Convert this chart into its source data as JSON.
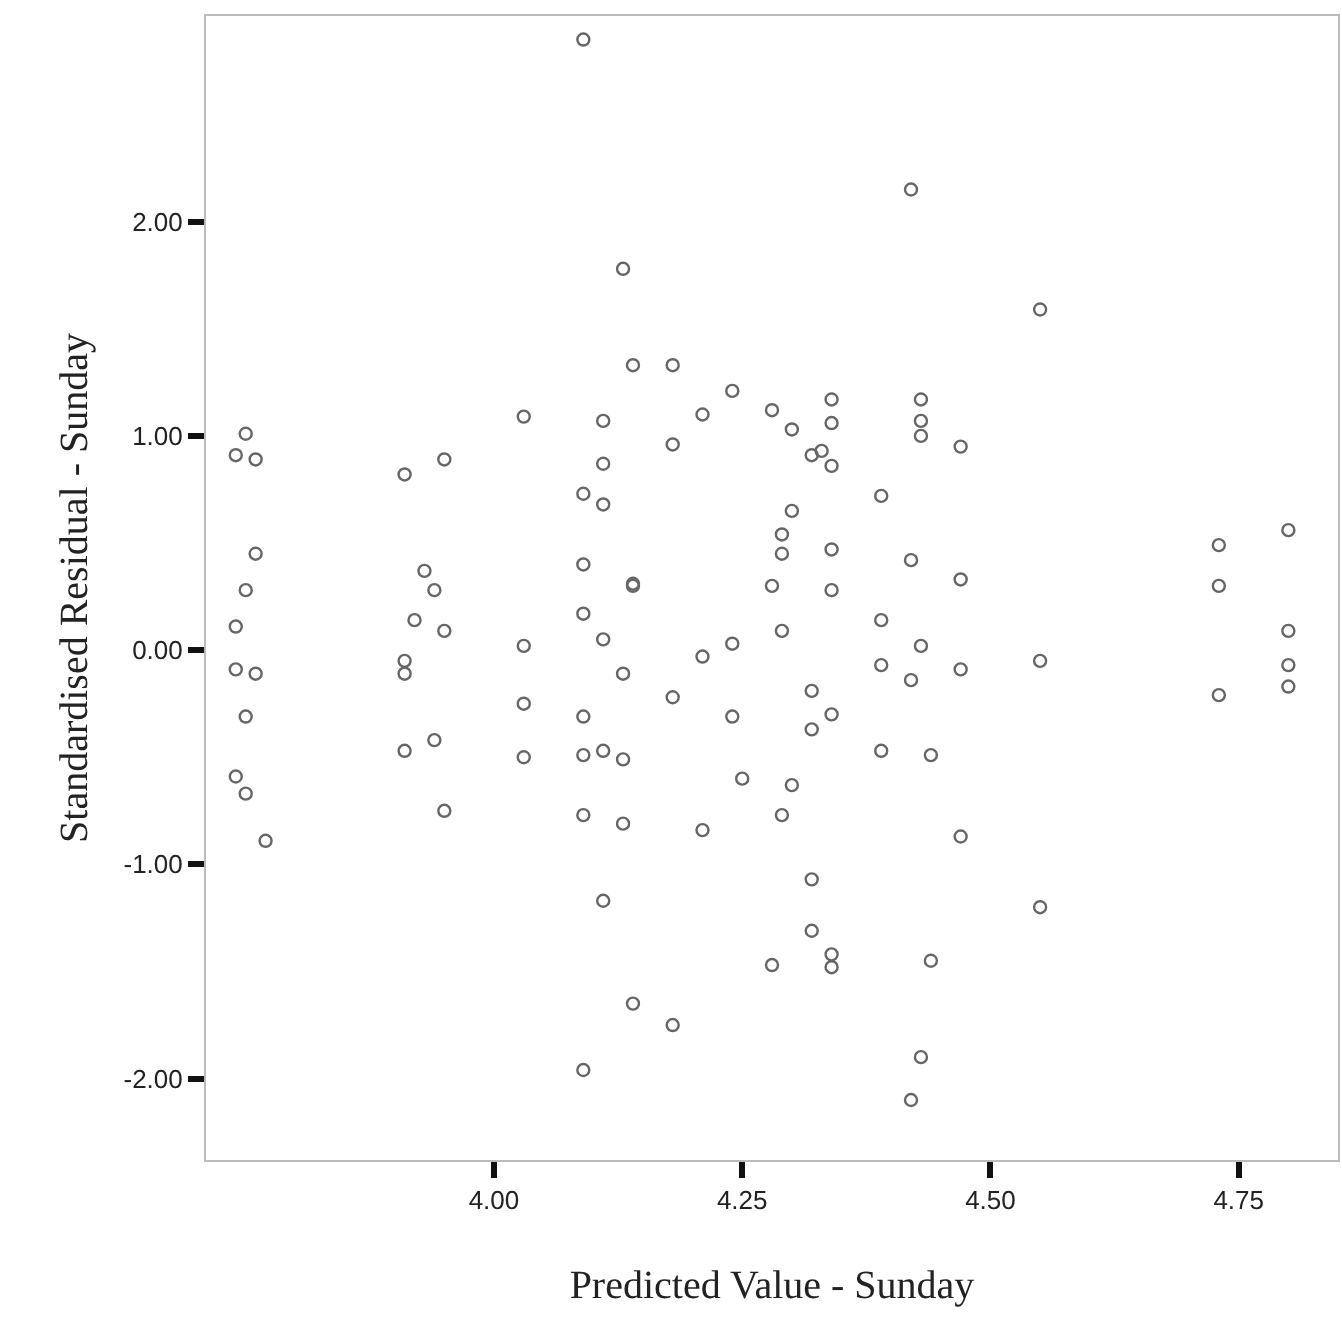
{
  "chart_data": {
    "type": "scatter",
    "xlabel": "Predicted Value - Sunday",
    "ylabel": "Standardised Residual - Sunday",
    "marker": "circle",
    "xlim": [
      3.71,
      4.85
    ],
    "ylim": [
      -2.38,
      2.96
    ],
    "xticks": [
      {
        "value": 4,
        "label": "4.00"
      },
      {
        "value": 4.25,
        "label": "4.25"
      },
      {
        "value": 4.5,
        "label": "4.50"
      },
      {
        "value": 4.75,
        "label": "4.75"
      }
    ],
    "yticks": [
      {
        "value": -2,
        "label": "-2.00"
      },
      {
        "value": -1,
        "label": "-1.00"
      },
      {
        "value": 0,
        "label": "0.00"
      },
      {
        "value": 1,
        "label": "1.00"
      },
      {
        "value": 2,
        "label": "2.00"
      }
    ],
    "series": [
      {
        "color": "#666666",
        "x": [
          3.75,
          3.74,
          3.76,
          3.76,
          3.75,
          3.74,
          3.74,
          3.76,
          3.75,
          3.74,
          3.75,
          3.77,
          3.91,
          3.95,
          3.93,
          3.94,
          3.92,
          3.95,
          3.91,
          3.91,
          3.91,
          3.94,
          3.95,
          4.03,
          4.03,
          4.03,
          4.03,
          4.09,
          4.09,
          4.09,
          4.09,
          4.09,
          4.09,
          4.09,
          4.09,
          4.11,
          4.11,
          4.11,
          4.11,
          4.11,
          4.11,
          4.13,
          4.14,
          4.14,
          4.13,
          4.13,
          4.13,
          4.14,
          4.14,
          4.18,
          4.18,
          4.18,
          4.18,
          4.21,
          4.21,
          4.21,
          4.24,
          4.24,
          4.24,
          4.25,
          4.28,
          4.28,
          4.28,
          4.3,
          4.3,
          4.29,
          4.29,
          4.29,
          4.3,
          4.29,
          4.32,
          4.33,
          4.32,
          4.32,
          4.32,
          4.32,
          4.34,
          4.34,
          4.34,
          4.34,
          4.34,
          4.34,
          4.34,
          4.34,
          4.39,
          4.39,
          4.39,
          4.39,
          4.42,
          4.42,
          4.42,
          4.42,
          4.43,
          4.43,
          4.43,
          4.43,
          4.44,
          4.44,
          4.43,
          4.47,
          4.47,
          4.47,
          4.47,
          4.55,
          4.55,
          4.55,
          4.73,
          4.73,
          4.73,
          4.8,
          4.8,
          4.8,
          4.8
        ],
        "values": [
          1.01,
          0.91,
          0.89,
          0.45,
          0.28,
          0.11,
          -0.09,
          -0.11,
          -0.31,
          -0.59,
          -0.67,
          -0.89,
          0.82,
          0.89,
          0.37,
          0.28,
          0.14,
          0.09,
          -0.05,
          -0.11,
          -0.47,
          -0.42,
          -0.75,
          1.09,
          0.02,
          -0.25,
          -0.5,
          2.85,
          0.73,
          0.4,
          0.17,
          -0.31,
          -0.49,
          -0.77,
          -1.96,
          1.07,
          0.87,
          0.68,
          0.05,
          -0.47,
          -1.17,
          1.78,
          0.31,
          0.3,
          -0.11,
          -0.51,
          -0.81,
          -1.65,
          1.33,
          1.33,
          0.96,
          -0.22,
          -1.75,
          1.1,
          -0.03,
          -0.84,
          1.21,
          0.03,
          -0.31,
          -0.6,
          1.12,
          0.3,
          -1.47,
          1.03,
          0.65,
          0.54,
          0.45,
          0.09,
          -0.63,
          -0.77,
          0.91,
          0.93,
          -0.19,
          -0.37,
          -1.07,
          -1.31,
          1.17,
          1.06,
          0.86,
          0.47,
          0.28,
          -0.3,
          -1.42,
          -1.48,
          0.72,
          0.14,
          -0.07,
          -0.47,
          2.15,
          0.42,
          -0.14,
          -2.1,
          1.17,
          1.07,
          1.0,
          0.02,
          -0.49,
          -1.45,
          -1.9,
          0.95,
          0.33,
          -0.09,
          -0.87,
          1.59,
          -0.05,
          -1.2,
          0.49,
          0.3,
          -0.21,
          0.56,
          0.09,
          -0.07,
          -0.17
        ]
      }
    ]
  }
}
